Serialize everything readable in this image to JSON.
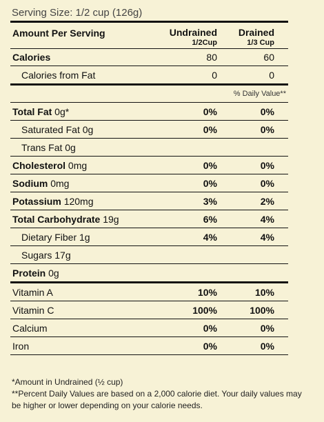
{
  "serving_size": "Serving Size: 1/2 cup (126g)",
  "header": {
    "amount_label": "Amount Per Serving",
    "col1_title": "Undrained",
    "col1_sub": "1/2Cup",
    "col2_title": "Drained",
    "col2_sub": "1/3 Cup"
  },
  "calories": {
    "label": "Calories",
    "undrained": "80",
    "drained": "60"
  },
  "calories_fat": {
    "label": "Calories from Fat",
    "undrained": "0",
    "drained": "0"
  },
  "daily_value_label": "% Daily Value**",
  "nutrients": [
    {
      "bold": "Total Fat",
      "amount": " 0g*",
      "undrained": "0%",
      "drained": "0%"
    },
    {
      "bold": "",
      "amount": "Saturated Fat 0g",
      "undrained": "0%",
      "drained": "0%"
    },
    {
      "bold": "",
      "amount": "Trans Fat 0g",
      "undrained": "",
      "drained": ""
    },
    {
      "bold": "Cholesterol",
      "amount": " 0mg",
      "undrained": "0%",
      "drained": "0%"
    },
    {
      "bold": "Sodium",
      "amount": " 0mg",
      "undrained": "0%",
      "drained": "0%"
    },
    {
      "bold": "Potassium",
      "amount": " 120mg",
      "undrained": "3%",
      "drained": "2%"
    },
    {
      "bold": "Total Carbohydrate",
      "amount": " 19g",
      "undrained": "6%",
      "drained": "4%"
    },
    {
      "bold": "",
      "amount": "Dietary Fiber 1g",
      "undrained": "4%",
      "drained": "4%"
    },
    {
      "bold": "",
      "amount": "Sugars 17g",
      "undrained": "",
      "drained": ""
    },
    {
      "bold": "Protein",
      "amount": " 0g",
      "undrained": "",
      "drained": ""
    }
  ],
  "vitamins": [
    {
      "label": "Vitamin A",
      "undrained": "10%",
      "drained": "10%"
    },
    {
      "label": "Vitamin C",
      "undrained": "100%",
      "drained": "100%"
    },
    {
      "label": "Calcium",
      "undrained": "0%",
      "drained": "0%"
    },
    {
      "label": "Iron",
      "undrained": "0%",
      "drained": "0%"
    }
  ],
  "footnotes": {
    "note1": "*Amount in Undrained (½ cup)",
    "note2": "**Percent Daily Values are based on a 2,000 calorie diet. Your daily values may be higher or lower depending on your calorie needs."
  }
}
